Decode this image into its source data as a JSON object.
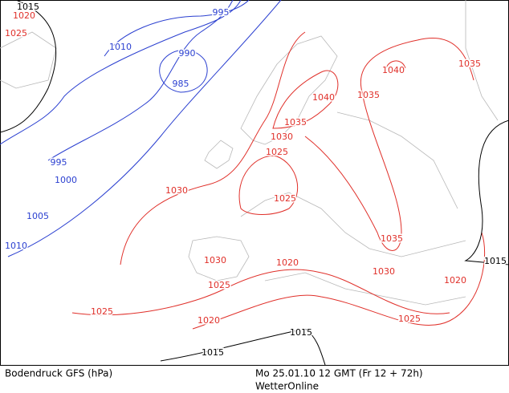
{
  "map": {
    "contour_labels": [
      "1015",
      "1020",
      "1025",
      "995",
      "1010",
      "990",
      "985",
      "995",
      "1000",
      "1005",
      "1010",
      "1040",
      "1035",
      "1040",
      "1035",
      "1035",
      "1030",
      "1025",
      "1030",
      "1025",
      "1035",
      "1030",
      "1020",
      "1015",
      "1030",
      "1025",
      "1020",
      "1025",
      "1025",
      "1020",
      "1015",
      "1015"
    ]
  },
  "footer": {
    "title": "Bodendruck GFS (hPa)",
    "time": "Mo 25.01.10 12 GMT (Fr 12 + 72h)",
    "source": "WetterOnline"
  }
}
